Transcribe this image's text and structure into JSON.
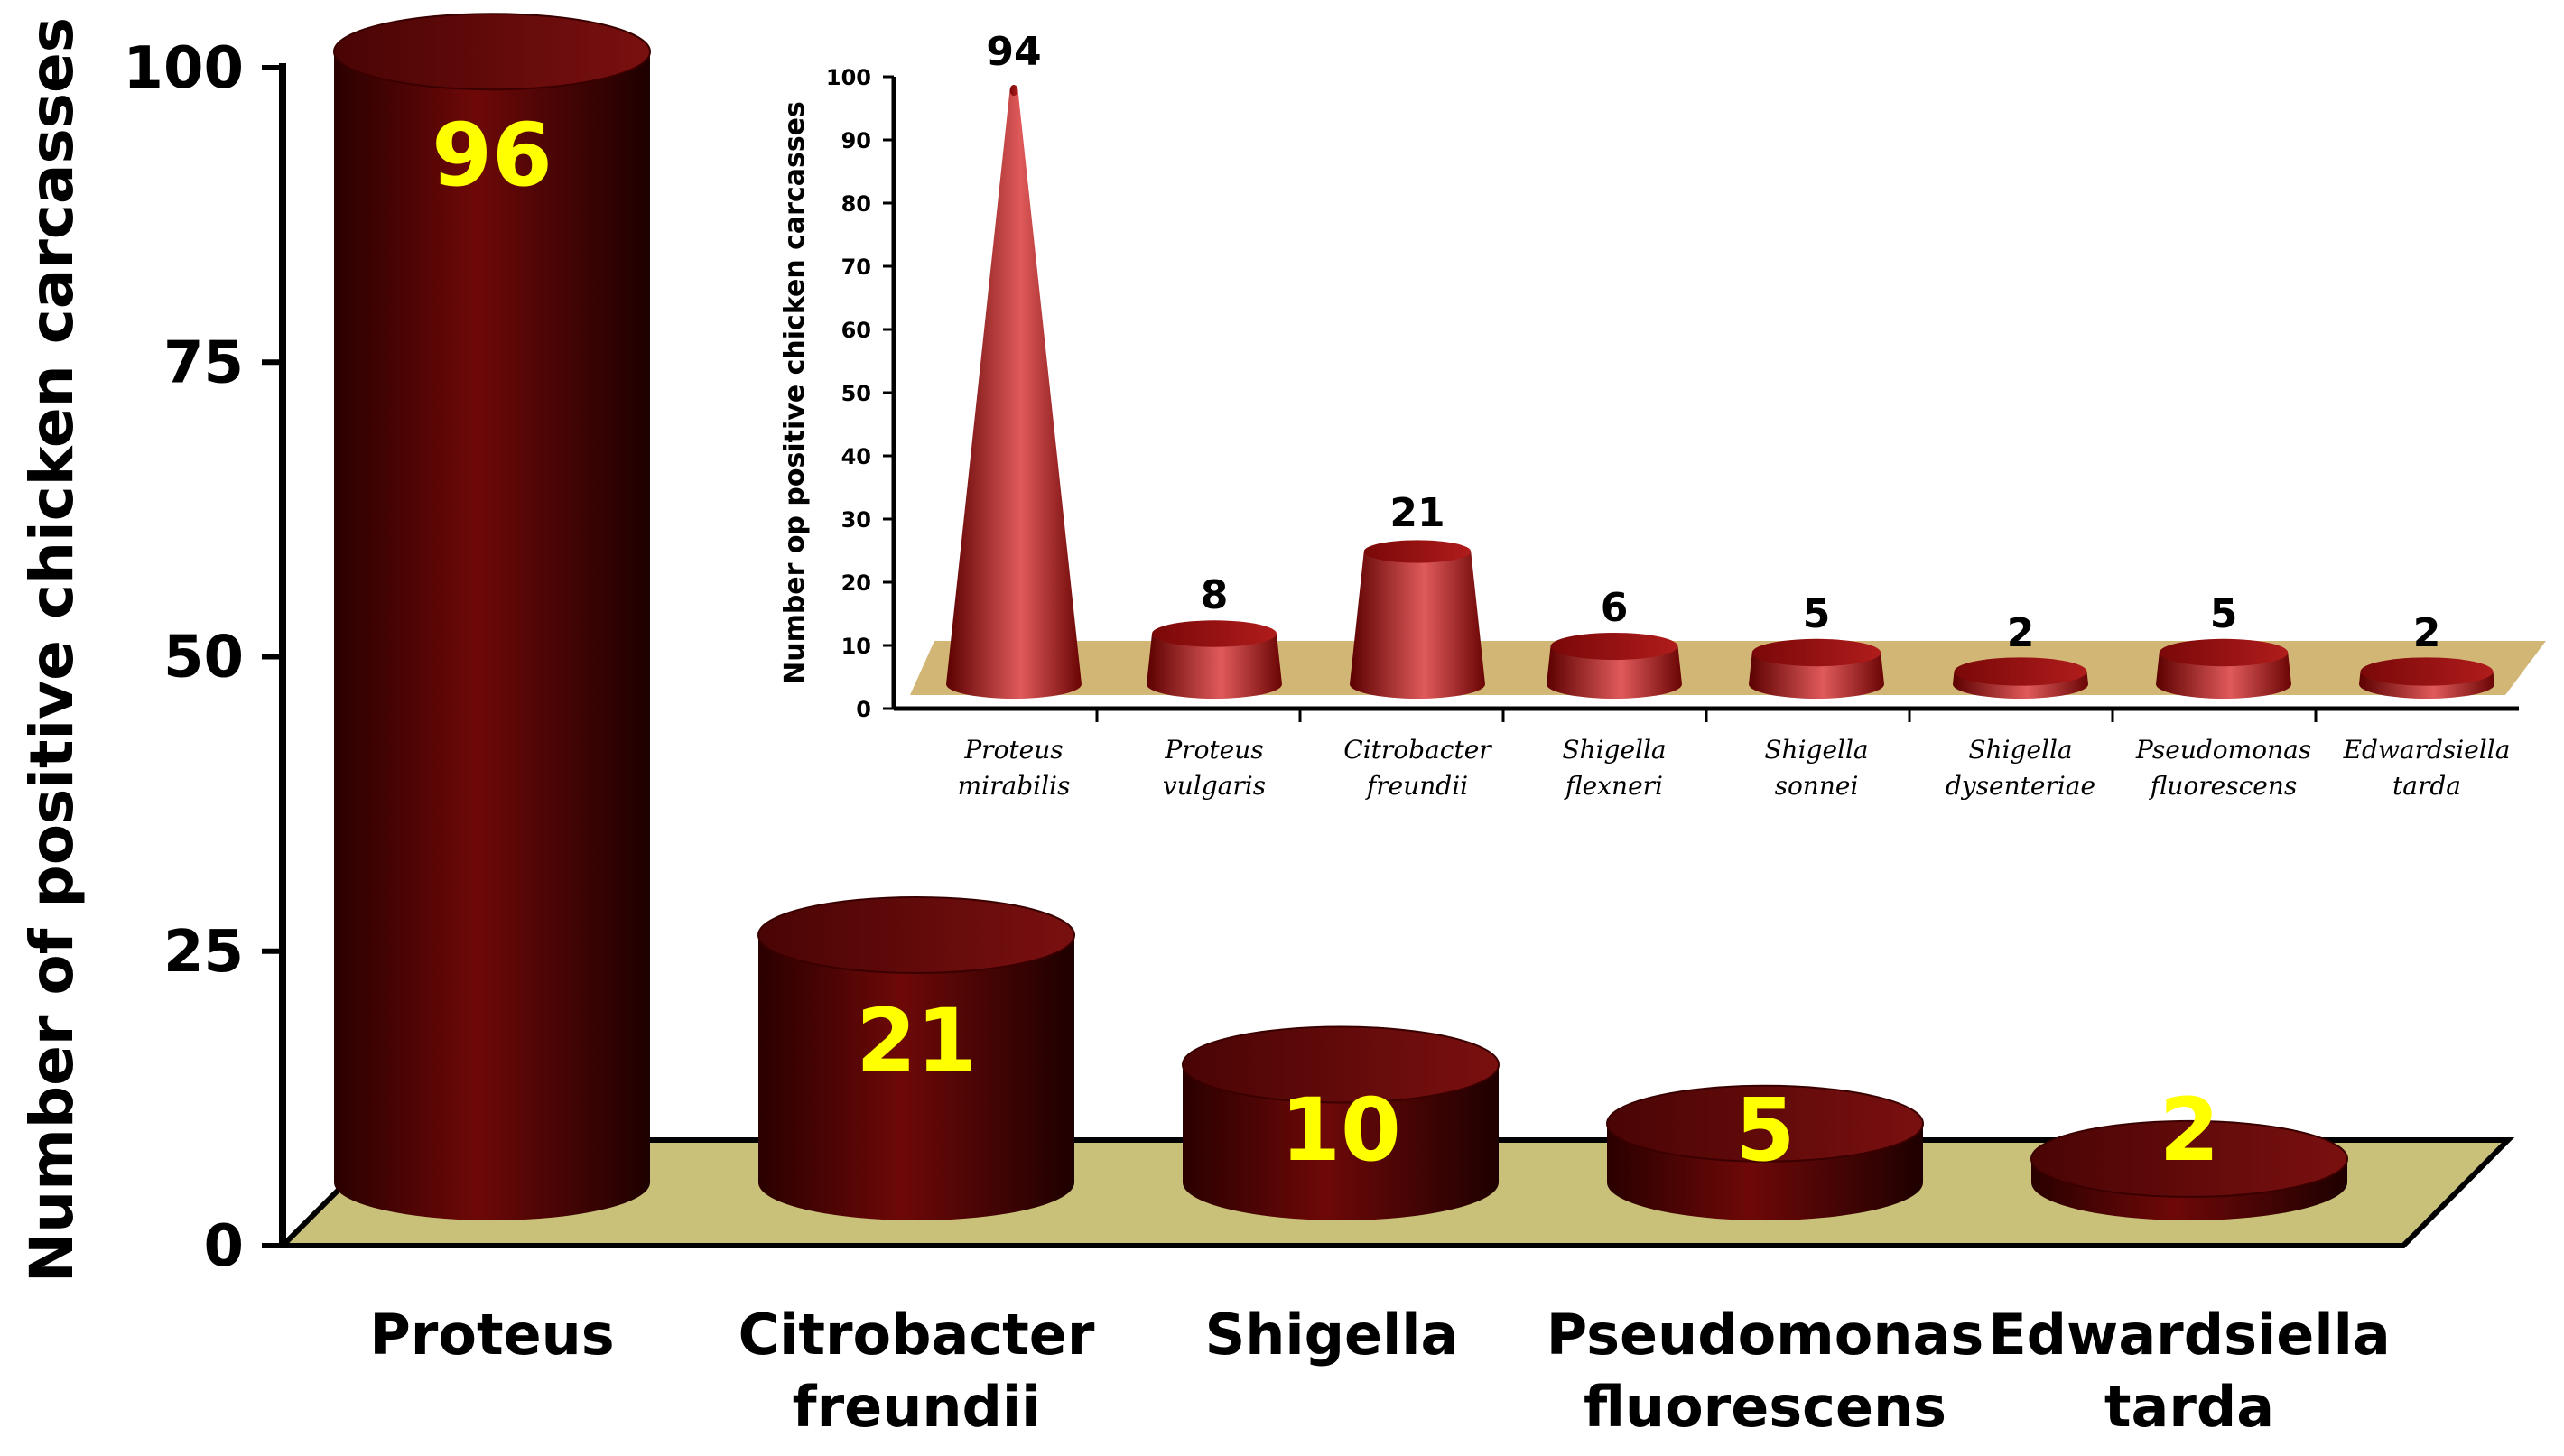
{
  "chart_data": [
    {
      "type": "bar",
      "title": "",
      "xlabel": "",
      "ylabel": "Number of positive chicken carcasses",
      "ylim": [
        0,
        100
      ],
      "yticks": [
        "0",
        "25",
        "50",
        "75",
        "100"
      ],
      "categories": [
        [
          "Proteus"
        ],
        [
          "Citrobacter",
          "freundii"
        ],
        [
          "Shigella"
        ],
        [
          "Pseudomonas",
          "fluorescens"
        ],
        [
          "Edwardsiella",
          "tarda"
        ]
      ],
      "values": [
        96,
        21,
        10,
        5,
        2
      ],
      "value_labels": [
        "96",
        "21",
        "10",
        "5",
        "2"
      ],
      "grid": false,
      "bar_color": "#5c0505",
      "floor_color": "#c9c07a",
      "label_color": "#ffff00"
    },
    {
      "type": "bar",
      "title": "",
      "xlabel": "",
      "ylabel": "Number op positive chicken carcasses",
      "ylim": [
        0,
        100
      ],
      "yticks": [
        "0",
        "10",
        "20",
        "30",
        "40",
        "50",
        "60",
        "70",
        "80",
        "90",
        "100"
      ],
      "categories": [
        [
          "Proteus",
          "mirabilis"
        ],
        [
          "Proteus",
          "vulgaris"
        ],
        [
          "Citrobacter",
          "freundii"
        ],
        [
          "Shigella",
          "flexneri"
        ],
        [
          "Shigella",
          "sonnei"
        ],
        [
          "Shigella",
          "dysenteriae"
        ],
        [
          "Pseudomonas",
          "fluorescens"
        ],
        [
          "Edwardsiella",
          "tarda"
        ]
      ],
      "values": [
        94,
        8,
        21,
        6,
        5,
        2,
        5,
        2
      ],
      "value_labels": [
        "94",
        "8",
        "21",
        "6",
        "5",
        "2",
        "5",
        "2"
      ],
      "grid": false,
      "bar_color": "#b81c1c",
      "floor_color": "#d1b676"
    }
  ]
}
